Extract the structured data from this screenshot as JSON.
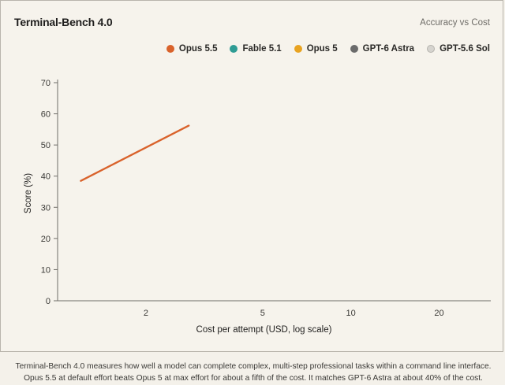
{
  "header": {
    "title": "Terminal-Bench 4.0",
    "subtitle": "Accuracy vs Cost"
  },
  "legend": [
    {
      "label": "Opus 5.5",
      "color": "#d9622b"
    },
    {
      "label": "Fable 5.1",
      "color": "#2f9c94"
    },
    {
      "label": "Opus 5",
      "color": "#e8a321"
    },
    {
      "label": "GPT-6 Astra",
      "color": "#6b6b6b"
    },
    {
      "label": "GPT-5.6 Sol",
      "color": "#d6d4cf"
    }
  ],
  "chart_data": {
    "type": "line",
    "xlabel": "Cost per attempt (USD, log scale)",
    "ylabel": "Score (%)",
    "x_scale": "log",
    "xlim": [
      1,
      30
    ],
    "ylim": [
      0,
      70
    ],
    "x_ticks": [
      2,
      5,
      10,
      20
    ],
    "y_ticks": [
      0,
      10,
      20,
      30,
      40,
      50,
      60,
      70
    ],
    "grid": false,
    "legend_position": "top-right",
    "series": [
      {
        "name": "Opus 5.5",
        "color": "#d9622b",
        "points": [
          {
            "x": 1.2,
            "y": 38.5
          },
          {
            "x": 2.8,
            "y": 56.2
          }
        ]
      }
    ]
  },
  "caption": {
    "line1": "Terminal-Bench 4.0 measures how well a model can complete complex, multi-step professional tasks within a command line interface.",
    "line2": "Opus 5.5 at default effort beats Opus 5 at max effort for about a fifth of the cost. It matches GPT-6 Astra at about 40% of the cost."
  }
}
